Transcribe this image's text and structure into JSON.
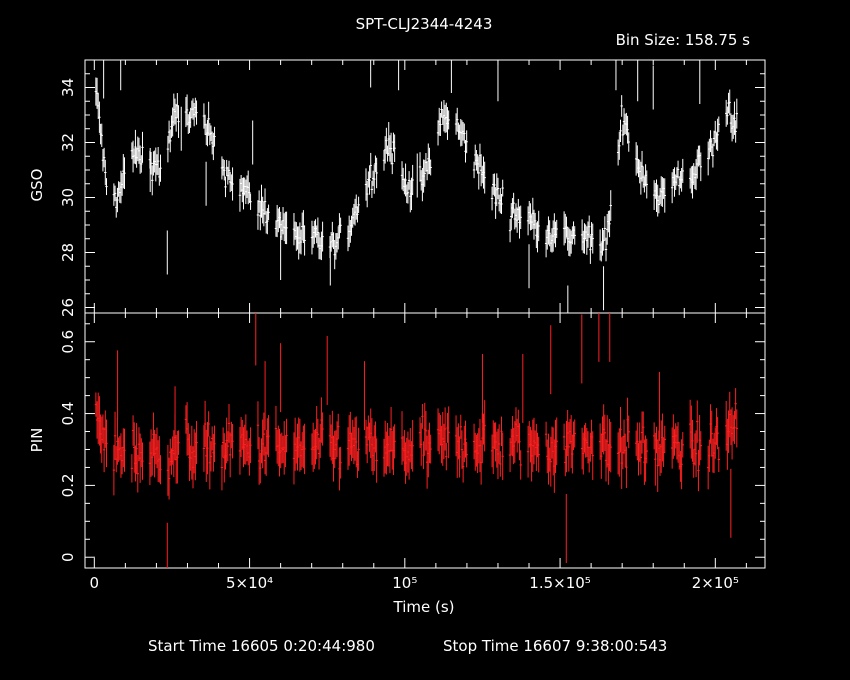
{
  "chart_data": {
    "type": "scatter",
    "title": "SPT-CLJ2344-4243",
    "bin_size_label": "Bin Size: 158.75 s",
    "xlabel": "Time (s)",
    "footer": {
      "start": "Start Time 16605  0:20:44:980",
      "stop": "Stop Time 16607  9:38:00:543"
    },
    "xlim": [
      -3000,
      216000
    ],
    "x_ticks": [
      {
        "value": 0,
        "label": "0"
      },
      {
        "value": 50000,
        "label": "5×10⁴"
      },
      {
        "value": 100000,
        "label": "10⁵"
      },
      {
        "value": 150000,
        "label": "1.5×10⁵"
      },
      {
        "value": 200000,
        "label": "2×10⁵"
      }
    ],
    "panels": [
      {
        "ylabel": "GSO",
        "ylim": [
          25.8,
          35.0
        ],
        "y_ticks": [
          26,
          28,
          30,
          32,
          34
        ],
        "color": "#ffffff",
        "trend": [
          [
            1000,
            33.6
          ],
          [
            4000,
            30.2
          ],
          [
            8000,
            30.0
          ],
          [
            11000,
            31.6
          ],
          [
            16000,
            31.5
          ],
          [
            22000,
            31.0
          ],
          [
            26000,
            33.0
          ],
          [
            30000,
            33.0
          ],
          [
            33000,
            33.0
          ],
          [
            36000,
            32.5
          ],
          [
            42000,
            31.0
          ],
          [
            50000,
            30.0
          ],
          [
            58000,
            29.2
          ],
          [
            66000,
            28.6
          ],
          [
            72000,
            28.4
          ],
          [
            78000,
            28.2
          ],
          [
            82000,
            29.0
          ],
          [
            86000,
            30.0
          ],
          [
            90000,
            31.0
          ],
          [
            95000,
            32.0
          ],
          [
            100000,
            30.5
          ],
          [
            105000,
            30.5
          ],
          [
            109000,
            31.5
          ],
          [
            112000,
            33.0
          ],
          [
            117000,
            32.5
          ],
          [
            122000,
            31.5
          ],
          [
            128000,
            30.3
          ],
          [
            134000,
            29.5
          ],
          [
            140000,
            29.2
          ],
          [
            146000,
            28.8
          ],
          [
            152000,
            28.6
          ],
          [
            158000,
            28.6
          ],
          [
            163000,
            28.0
          ],
          [
            167000,
            29.5
          ],
          [
            170000,
            33.0
          ],
          [
            176000,
            31.0
          ],
          [
            182000,
            30.0
          ],
          [
            188000,
            30.6
          ],
          [
            194000,
            31.0
          ],
          [
            200000,
            32.0
          ],
          [
            204000,
            33.4
          ],
          [
            208000,
            32.2
          ]
        ],
        "noise": 0.35,
        "errbar": 0.5,
        "outliers": [
          [
            3000,
            34.4
          ],
          [
            8500,
            34.7
          ],
          [
            18000,
            31.0
          ],
          [
            23500,
            28.0
          ],
          [
            28000,
            32.5
          ],
          [
            36000,
            30.5
          ],
          [
            51000,
            32.0
          ],
          [
            60000,
            27.8
          ],
          [
            76000,
            27.6
          ],
          [
            89000,
            34.8
          ],
          [
            98000,
            34.7
          ],
          [
            104000,
            30.8
          ],
          [
            115000,
            34.6
          ],
          [
            130000,
            34.3
          ],
          [
            140000,
            27.5
          ],
          [
            152500,
            26.0
          ],
          [
            164000,
            26.7
          ],
          [
            168000,
            34.7
          ],
          [
            175000,
            34.3
          ],
          [
            180000,
            34.0
          ],
          [
            195000,
            34.2
          ]
        ]
      },
      {
        "ylabel": "PIN",
        "ylim": [
          -0.03,
          0.68
        ],
        "y_ticks": [
          0,
          0.2,
          0.4,
          0.6
        ],
        "color": "#ff2020",
        "trend": [
          [
            0,
            0.4
          ],
          [
            5000,
            0.28
          ],
          [
            10000,
            0.3
          ],
          [
            20000,
            0.28
          ],
          [
            30000,
            0.31
          ],
          [
            40000,
            0.3
          ],
          [
            50000,
            0.31
          ],
          [
            60000,
            0.3
          ],
          [
            70000,
            0.3
          ],
          [
            80000,
            0.31
          ],
          [
            90000,
            0.3
          ],
          [
            100000,
            0.3
          ],
          [
            110000,
            0.31
          ],
          [
            120000,
            0.32
          ],
          [
            130000,
            0.31
          ],
          [
            140000,
            0.31
          ],
          [
            150000,
            0.31
          ],
          [
            160000,
            0.32
          ],
          [
            170000,
            0.31
          ],
          [
            180000,
            0.3
          ],
          [
            190000,
            0.3
          ],
          [
            200000,
            0.31
          ],
          [
            207000,
            0.38
          ]
        ],
        "noise": 0.045,
        "errbar": 0.06,
        "outliers": [
          [
            7500,
            0.48
          ],
          [
            23500,
            0.0
          ],
          [
            26000,
            0.38
          ],
          [
            52000,
            0.63
          ],
          [
            55000,
            0.45
          ],
          [
            60000,
            0.5
          ],
          [
            75000,
            0.52
          ],
          [
            87000,
            0.45
          ],
          [
            125000,
            0.47
          ],
          [
            138000,
            0.47
          ],
          [
            147000,
            0.55
          ],
          [
            152000,
            0.08
          ],
          [
            157000,
            0.58
          ],
          [
            162500,
            0.64
          ],
          [
            166000,
            0.64
          ],
          [
            182000,
            0.42
          ],
          [
            205000,
            0.15
          ]
        ]
      }
    ]
  }
}
